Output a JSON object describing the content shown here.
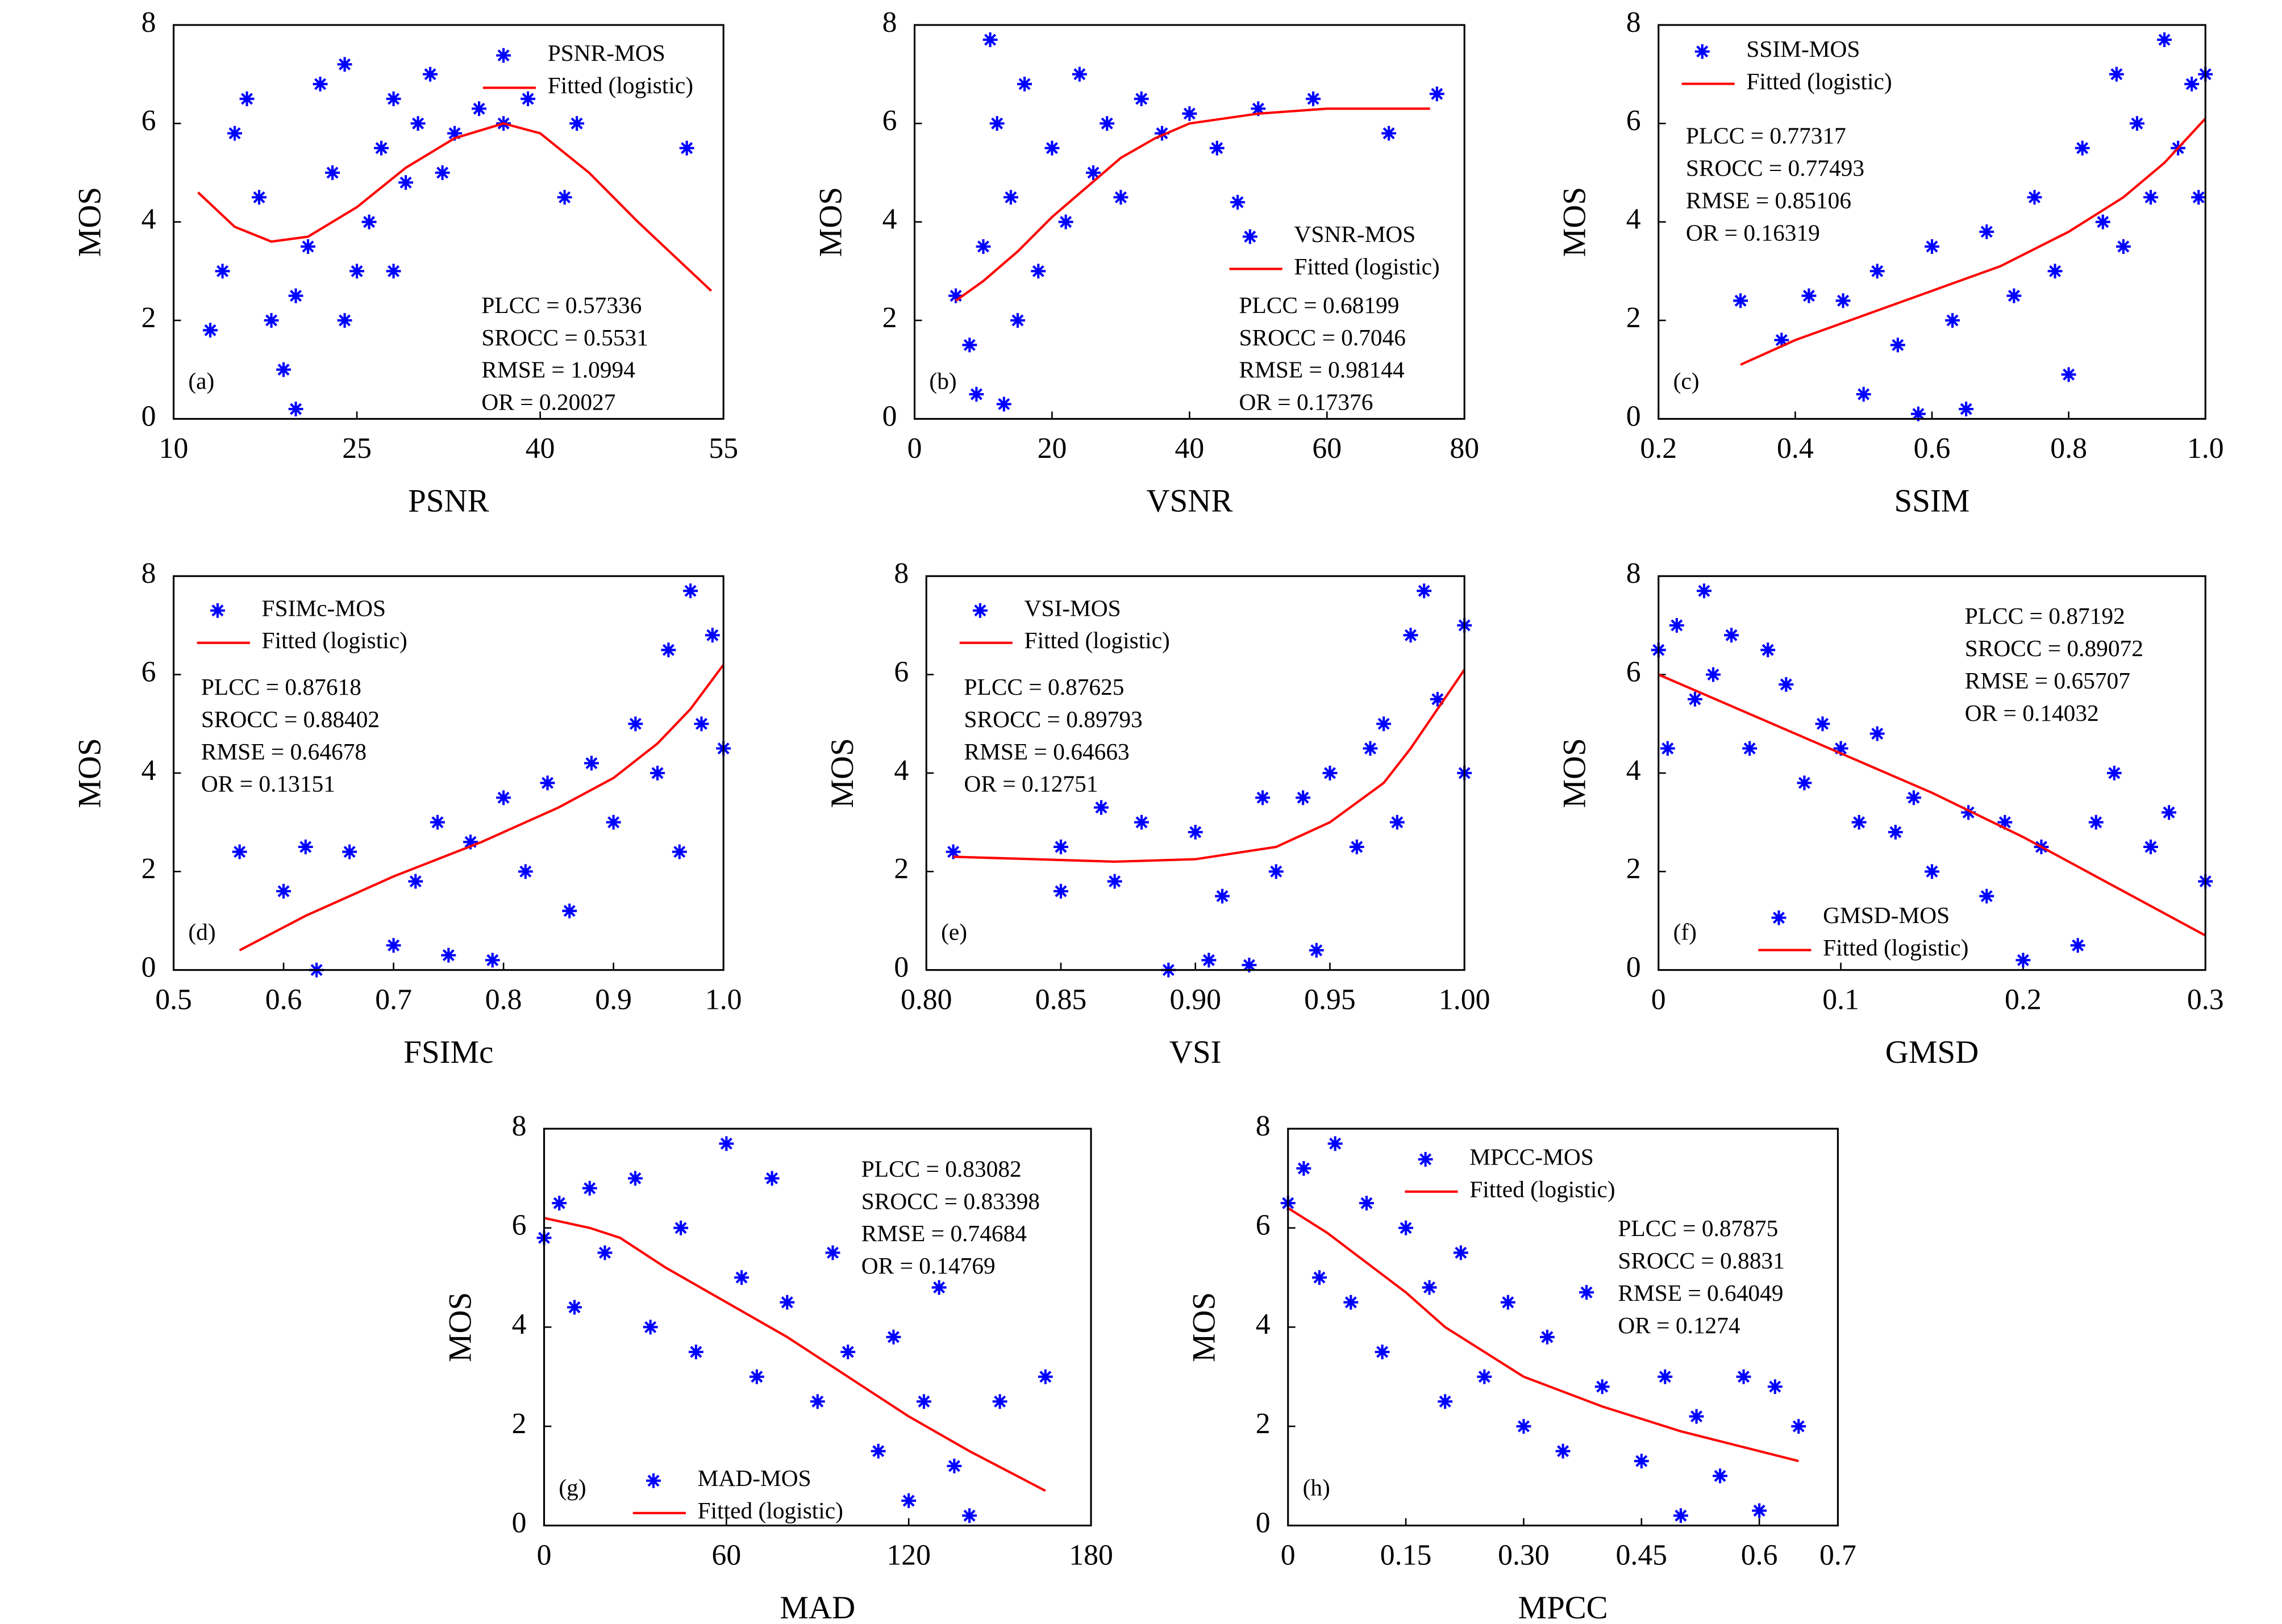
{
  "chart_data": [
    {
      "type": "scatter",
      "panel": "(a)",
      "xlabel": "PSNR",
      "ylabel": "MOS",
      "xlim": [
        10,
        55
      ],
      "ylim": [
        0,
        8
      ],
      "xticks": [
        10,
        25,
        40,
        55
      ],
      "yticks": [
        0,
        2,
        4,
        6,
        8
      ],
      "annotations": [
        "PLCC = 0.57336",
        "SROCC = 0.5531",
        "RMSE = 1.0994",
        "OR = 0.20027"
      ],
      "series": [
        {
          "name": "PSNR-MOS",
          "type": "scatter",
          "color": "#0000ff",
          "x": [
            13,
            14,
            15,
            16,
            17,
            18,
            19,
            20,
            21,
            22,
            23,
            24,
            25,
            26,
            27,
            28,
            29,
            30,
            31,
            32,
            33,
            35,
            37,
            39,
            42,
            43,
            52,
            20,
            24,
            28
          ],
          "values": [
            1.8,
            3,
            5.8,
            6.5,
            4.5,
            2,
            1,
            0.2,
            3.5,
            6.8,
            5,
            7.2,
            3,
            4,
            5.5,
            6.5,
            4.8,
            6,
            7,
            5,
            5.8,
            6.3,
            6,
            6.5,
            4.5,
            6,
            5.5,
            2.5,
            2,
            3
          ]
        },
        {
          "name": "Fitted (logistic)",
          "type": "line",
          "color": "#ff0000",
          "x": [
            12,
            15,
            18,
            21,
            25,
            29,
            33,
            37,
            40,
            44,
            48,
            51,
            54
          ],
          "values": [
            4.6,
            3.9,
            3.6,
            3.7,
            4.3,
            5.1,
            5.7,
            6,
            5.8,
            5,
            4,
            3.3,
            2.6
          ]
        }
      ]
    },
    {
      "type": "scatter",
      "panel": "(b)",
      "xlabel": "VSNR",
      "ylabel": "MOS",
      "xlim": [
        0,
        80
      ],
      "ylim": [
        0,
        8
      ],
      "xticks": [
        0,
        20,
        40,
        60,
        80
      ],
      "yticks": [
        0,
        2,
        4,
        6,
        8
      ],
      "annotations": [
        "PLCC = 0.68199",
        "SROCC = 0.7046",
        "RMSE = 0.98144",
        "OR = 0.17376"
      ],
      "series": [
        {
          "name": "VSNR-MOS",
          "type": "scatter",
          "color": "#0000ff",
          "x": [
            6,
            8,
            9,
            10,
            11,
            12,
            13,
            14,
            15,
            16,
            18,
            20,
            22,
            24,
            26,
            28,
            30,
            33,
            36,
            40,
            44,
            47,
            50,
            58,
            69,
            76
          ],
          "values": [
            2.5,
            1.5,
            0.5,
            3.5,
            7.7,
            6,
            0.3,
            4.5,
            2,
            6.8,
            3,
            5.5,
            4,
            7,
            5,
            6,
            4.5,
            6.5,
            5.8,
            6.2,
            5.5,
            4.4,
            6.3,
            6.5,
            5.8,
            6.6
          ]
        },
        {
          "name": "Fitted (logistic)",
          "type": "line",
          "color": "#ff0000",
          "x": [
            6,
            10,
            15,
            20,
            25,
            30,
            35,
            40,
            50,
            60,
            75
          ],
          "values": [
            2.4,
            2.8,
            3.4,
            4.1,
            4.7,
            5.3,
            5.7,
            6,
            6.2,
            6.3,
            6.3
          ]
        }
      ]
    },
    {
      "type": "scatter",
      "panel": "(c)",
      "xlabel": "SSIM",
      "ylabel": "MOS",
      "xlim": [
        0.2,
        1
      ],
      "ylim": [
        0,
        8
      ],
      "xticks": [
        0.2,
        0.4,
        0.6,
        0.8,
        {
          "value": 1,
          "label": "1.0"
        }
      ],
      "yticks": [
        0,
        2,
        4,
        6,
        8
      ],
      "annotations": [
        "PLCC = 0.77317",
        "SROCC = 0.77493",
        "RMSE = 0.85106",
        "OR = 0.16319"
      ],
      "series": [
        {
          "name": "SSIM-MOS",
          "type": "scatter",
          "color": "#0000ff",
          "x": [
            0.32,
            0.38,
            0.42,
            0.47,
            0.5,
            0.52,
            0.55,
            0.58,
            0.6,
            0.63,
            0.65,
            0.68,
            0.72,
            0.75,
            0.78,
            0.8,
            0.82,
            0.85,
            0.87,
            0.88,
            0.9,
            0.92,
            0.94,
            0.96,
            0.98,
            0.99,
            1
          ],
          "values": [
            2.4,
            1.6,
            2.5,
            2.4,
            0.5,
            3,
            1.5,
            0.1,
            3.5,
            2,
            0.2,
            3.8,
            2.5,
            4.5,
            3,
            0.9,
            5.5,
            4,
            7,
            3.5,
            6,
            4.5,
            7.7,
            5.5,
            6.8,
            4.5,
            7
          ]
        },
        {
          "name": "Fitted (logistic)",
          "type": "line",
          "color": "#ff0000",
          "x": [
            0.32,
            0.4,
            0.5,
            0.6,
            0.7,
            0.8,
            0.88,
            0.94,
            0.98,
            1
          ],
          "values": [
            1.1,
            1.6,
            2.1,
            2.6,
            3.1,
            3.8,
            4.5,
            5.2,
            5.8,
            6.1
          ]
        }
      ]
    },
    {
      "type": "scatter",
      "panel": "(d)",
      "xlabel": "FSIMc",
      "ylabel": "MOS",
      "xlim": [
        0.5,
        1
      ],
      "ylim": [
        0,
        8
      ],
      "xticks": [
        0.5,
        0.6,
        0.7,
        0.8,
        0.9,
        {
          "value": 1,
          "label": "1.0"
        }
      ],
      "yticks": [
        0,
        2,
        4,
        6,
        8
      ],
      "annotations": [
        "PLCC = 0.87618",
        "SROCC = 0.88402",
        "RMSE = 0.64678",
        "OR = 0.13151"
      ],
      "series": [
        {
          "name": "FSIMc-MOS",
          "type": "scatter",
          "color": "#0000ff",
          "x": [
            0.56,
            0.6,
            0.62,
            0.63,
            0.66,
            0.7,
            0.72,
            0.74,
            0.75,
            0.77,
            0.79,
            0.8,
            0.82,
            0.84,
            0.86,
            0.88,
            0.9,
            0.92,
            0.94,
            0.95,
            0.96,
            0.97,
            0.98,
            0.99,
            1
          ],
          "values": [
            2.4,
            1.6,
            2.5,
            0,
            2.4,
            0.5,
            1.8,
            3,
            0.3,
            2.6,
            0.2,
            3.5,
            2,
            3.8,
            1.2,
            4.2,
            3,
            5,
            4,
            6.5,
            2.4,
            7.7,
            5,
            6.8,
            4.5
          ]
        },
        {
          "name": "Fitted (logistic)",
          "type": "line",
          "color": "#ff0000",
          "x": [
            0.56,
            0.62,
            0.7,
            0.78,
            0.85,
            0.9,
            0.94,
            0.97,
            0.99,
            1
          ],
          "values": [
            0.4,
            1.1,
            1.9,
            2.6,
            3.3,
            3.9,
            4.6,
            5.3,
            5.9,
            6.2
          ]
        }
      ]
    },
    {
      "type": "scatter",
      "panel": "(e)",
      "xlabel": "VSI",
      "ylabel": "MOS",
      "xlim": [
        0.8,
        1
      ],
      "ylim": [
        0,
        8
      ],
      "xticks": [
        {
          "value": 0.8,
          "label": "0.80"
        },
        0.85,
        {
          "value": 0.9,
          "label": "0.90"
        },
        0.95,
        {
          "value": 1,
          "label": "1.00"
        }
      ],
      "yticks": [
        0,
        2,
        4,
        6,
        8
      ],
      "annotations": [
        "PLCC = 0.87625",
        "SROCC = 0.89793",
        "RMSE = 0.64663",
        "OR = 0.12751"
      ],
      "series": [
        {
          "name": "VSI-MOS",
          "type": "scatter",
          "color": "#0000ff",
          "x": [
            0.81,
            0.85,
            0.85,
            0.865,
            0.87,
            0.88,
            0.89,
            0.9,
            0.905,
            0.91,
            0.92,
            0.925,
            0.93,
            0.94,
            0.945,
            0.95,
            0.96,
            0.965,
            0.97,
            0.975,
            0.98,
            0.985,
            0.99,
            1,
            1
          ],
          "values": [
            2.4,
            2.5,
            1.6,
            3.3,
            1.8,
            3,
            0,
            2.8,
            0.2,
            1.5,
            0.1,
            3.5,
            2,
            3.5,
            0.4,
            4,
            2.5,
            4.5,
            5,
            3,
            6.8,
            7.7,
            5.5,
            7,
            4
          ]
        },
        {
          "name": "Fitted (logistic)",
          "type": "line",
          "color": "#ff0000",
          "x": [
            0.81,
            0.84,
            0.87,
            0.9,
            0.93,
            0.95,
            0.97,
            0.98,
            0.99,
            1
          ],
          "values": [
            2.3,
            2.25,
            2.2,
            2.25,
            2.5,
            3,
            3.8,
            4.5,
            5.3,
            6.1
          ]
        }
      ]
    },
    {
      "type": "scatter",
      "panel": "(f)",
      "xlabel": "GMSD",
      "ylabel": "MOS",
      "xlim": [
        0,
        0.3
      ],
      "ylim": [
        0,
        8
      ],
      "xticks": [
        0,
        0.1,
        0.2,
        0.3
      ],
      "yticks": [
        0,
        2,
        4,
        6,
        8
      ],
      "annotations": [
        "PLCC = 0.87192",
        "SROCC = 0.89072",
        "RMSE = 0.65707",
        "OR = 0.14032"
      ],
      "series": [
        {
          "name": "GMSD-MOS",
          "type": "scatter",
          "color": "#0000ff",
          "x": [
            0,
            0.005,
            0.01,
            0.02,
            0.025,
            0.03,
            0.04,
            0.05,
            0.06,
            0.07,
            0.08,
            0.09,
            0.1,
            0.11,
            0.12,
            0.13,
            0.14,
            0.15,
            0.17,
            0.18,
            0.19,
            0.2,
            0.21,
            0.23,
            0.24,
            0.25,
            0.27,
            0.28,
            0.3
          ],
          "values": [
            6.5,
            4.5,
            7,
            5.5,
            7.7,
            6,
            6.8,
            4.5,
            6.5,
            5.8,
            3.8,
            5,
            4.5,
            3,
            4.8,
            2.8,
            3.5,
            2,
            3.2,
            1.5,
            3,
            0.2,
            2.5,
            0.5,
            3,
            4,
            2.5,
            3.2,
            1.8
          ]
        },
        {
          "name": "Fitted (logistic)",
          "type": "line",
          "color": "#ff0000",
          "x": [
            0,
            0.05,
            0.1,
            0.15,
            0.2,
            0.25,
            0.3
          ],
          "values": [
            6,
            5.2,
            4.4,
            3.6,
            2.7,
            1.7,
            0.7
          ]
        }
      ]
    },
    {
      "type": "scatter",
      "panel": "(g)",
      "xlabel": "MAD",
      "ylabel": "MOS",
      "xlim": [
        0,
        180
      ],
      "ylim": [
        0,
        8
      ],
      "xticks": [
        0,
        60,
        120,
        180
      ],
      "yticks": [
        0,
        2,
        4,
        6,
        8
      ],
      "annotations": [
        "PLCC = 0.83082",
        "SROCC = 0.83398",
        "RMSE = 0.74684",
        "OR = 0.14769"
      ],
      "series": [
        {
          "name": "MAD-MOS",
          "type": "scatter",
          "color": "#0000ff",
          "x": [
            0,
            5,
            10,
            15,
            20,
            30,
            35,
            45,
            50,
            60,
            65,
            70,
            75,
            80,
            90,
            95,
            100,
            110,
            115,
            120,
            125,
            130,
            135,
            140,
            150,
            165
          ],
          "values": [
            5.8,
            6.5,
            4.4,
            6.8,
            5.5,
            7,
            4,
            6,
            3.5,
            7.7,
            5,
            3,
            7,
            4.5,
            2.5,
            5.5,
            3.5,
            1.5,
            3.8,
            0.5,
            2.5,
            4.8,
            1.2,
            0.2,
            2.5,
            3
          ]
        },
        {
          "name": "Fitted (logistic)",
          "type": "line",
          "color": "#ff0000",
          "x": [
            0,
            15,
            25,
            40,
            60,
            80,
            100,
            120,
            140,
            165
          ],
          "values": [
            6.2,
            6,
            5.8,
            5.2,
            4.5,
            3.8,
            3,
            2.2,
            1.5,
            0.7
          ]
        }
      ]
    },
    {
      "type": "scatter",
      "panel": "(h)",
      "xlabel": "MPCC",
      "ylabel": "MOS",
      "xlim": [
        0,
        0.7
      ],
      "ylim": [
        0,
        8
      ],
      "xticks": [
        0,
        0.15,
        {
          "value": 0.3,
          "label": "0.30"
        },
        0.45,
        0.6,
        0.7
      ],
      "yticks": [
        0,
        2,
        4,
        6,
        8
      ],
      "annotations": [
        "PLCC = 0.87875",
        "SROCC = 0.8831",
        "RMSE = 0.64049",
        "OR = 0.1274"
      ],
      "series": [
        {
          "name": "MPCC-MOS",
          "type": "scatter",
          "color": "#0000ff",
          "x": [
            0,
            0.02,
            0.04,
            0.06,
            0.08,
            0.1,
            0.12,
            0.15,
            0.18,
            0.2,
            0.22,
            0.25,
            0.28,
            0.3,
            0.33,
            0.35,
            0.38,
            0.4,
            0.45,
            0.48,
            0.5,
            0.52,
            0.55,
            0.58,
            0.6,
            0.62,
            0.65
          ],
          "values": [
            6.5,
            7.2,
            5,
            7.7,
            4.5,
            6.5,
            3.5,
            6,
            4.8,
            2.5,
            5.5,
            3,
            4.5,
            2,
            3.8,
            1.5,
            4.7,
            2.8,
            1.3,
            3,
            0.2,
            2.2,
            1,
            3,
            0.3,
            2.8,
            2
          ]
        },
        {
          "name": "Fitted (logistic)",
          "type": "line",
          "color": "#ff0000",
          "x": [
            0,
            0.05,
            0.1,
            0.15,
            0.2,
            0.3,
            0.4,
            0.5,
            0.65
          ],
          "values": [
            6.4,
            5.9,
            5.3,
            4.7,
            4,
            3,
            2.4,
            1.9,
            1.3
          ]
        }
      ]
    }
  ]
}
